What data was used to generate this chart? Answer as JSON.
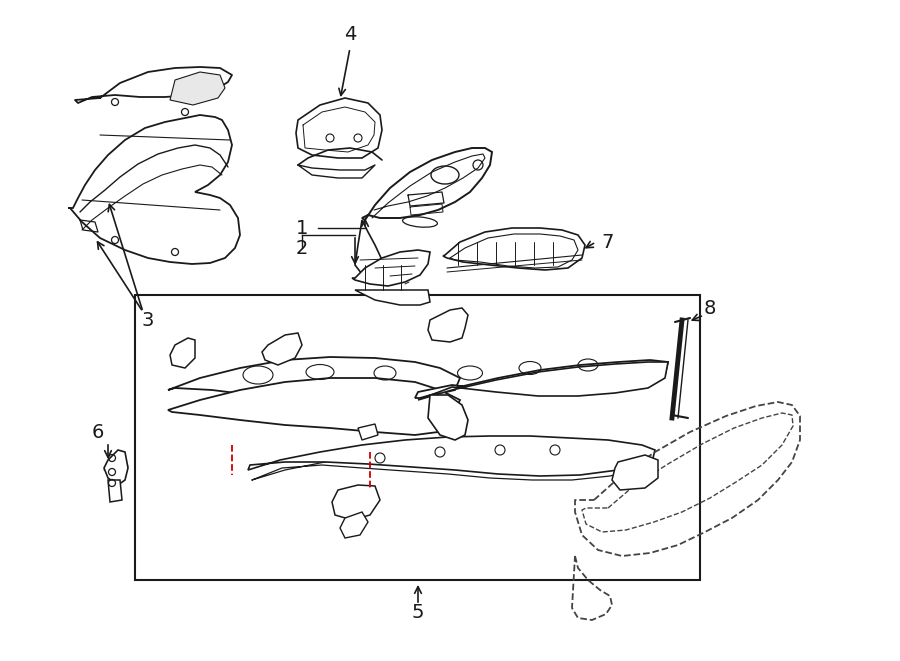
{
  "background_color": "#ffffff",
  "line_color": "#1a1a1a",
  "red_line_color": "#cc0000",
  "dashed_line_color": "#444444",
  "fig_width": 9.0,
  "fig_height": 6.61,
  "dpi": 100,
  "xlim": [
    0,
    900
  ],
  "ylim": [
    0,
    661
  ]
}
